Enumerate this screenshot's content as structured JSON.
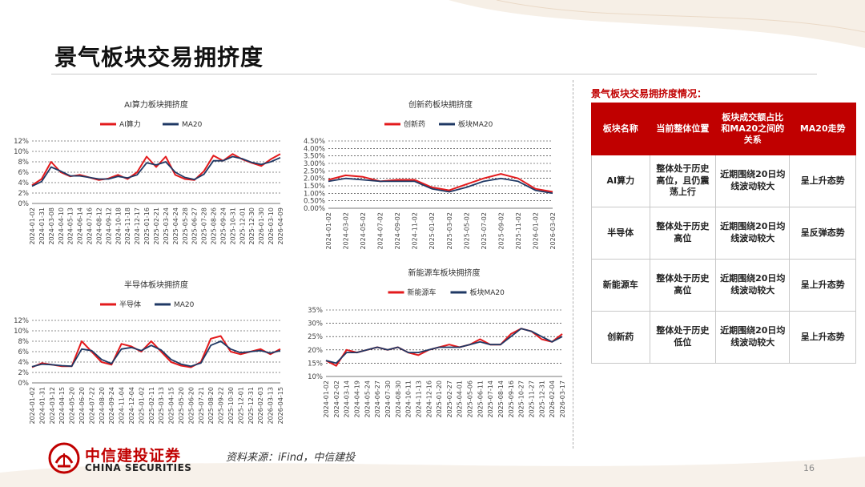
{
  "page": {
    "title": "景气板块交易拥挤度",
    "source": "资料来源：iFind，中信建投",
    "page_number": "16"
  },
  "logo": {
    "cn": "中信建投证券",
    "en": "CHINA SECURITIES"
  },
  "colors": {
    "accent": "#c00000",
    "series_main": "#e31a1c",
    "series_ma": "#1f3864"
  },
  "table": {
    "title": "景气板块交易拥挤度情况：",
    "headers": [
      "板块名称",
      "当前整体位置",
      "板块成交额占比和MA20之间的关系",
      "MA20走势"
    ],
    "rows": [
      [
        "AI算力",
        "整体处于历史高位，且仍震荡上行",
        "近期围绕20日均线波动较大",
        "呈上升态势"
      ],
      [
        "半导体",
        "整体处于历史高位",
        "近期围绕20日均线波动较大",
        "呈反弹态势"
      ],
      [
        "新能源车",
        "整体处于历史高位",
        "近期围绕20日均线波动较大",
        "呈上升态势"
      ],
      [
        "创新药",
        "整体处于历史低位",
        "近期围绕20日均线波动较大",
        "呈上升态势"
      ]
    ]
  },
  "chart_data": [
    {
      "type": "line",
      "title": "AI算力板块拥挤度",
      "legend": [
        "AI算力",
        "MA20"
      ],
      "ylim": [
        0,
        0.12
      ],
      "yticks": [
        "0%",
        "2%",
        "4%",
        "6%",
        "8%",
        "10%",
        "12%"
      ],
      "x": [
        "2024-01-02",
        "2024-01-31",
        "2024-03-08",
        "2024-04-10",
        "2024-05-13",
        "2024-06-14",
        "2024-07-16",
        "2024-08-12",
        "2024-09-12",
        "2024-10-18",
        "2024-11-18",
        "2024-12-17",
        "2025-01-16",
        "2025-02-21",
        "2025-03-24",
        "2025-04-24",
        "2025-05-28",
        "2025-06-27",
        "2025-07-28",
        "2025-08-26",
        "2025-09-24",
        "2025-10-31",
        "2025-12-01",
        "2025-12-30",
        "2026-01-30",
        "2026-03-10",
        "2026-04-09"
      ],
      "series": [
        {
          "name": "AI算力",
          "values": [
            0.035,
            0.047,
            0.08,
            0.06,
            0.052,
            0.055,
            0.05,
            0.045,
            0.048,
            0.055,
            0.047,
            0.06,
            0.09,
            0.07,
            0.09,
            0.055,
            0.047,
            0.045,
            0.062,
            0.092,
            0.082,
            0.095,
            0.085,
            0.078,
            0.072,
            0.085,
            0.095
          ]
        },
        {
          "name": "MA20",
          "values": [
            0.033,
            0.042,
            0.07,
            0.062,
            0.053,
            0.053,
            0.05,
            0.047,
            0.047,
            0.052,
            0.049,
            0.055,
            0.078,
            0.074,
            0.08,
            0.06,
            0.05,
            0.046,
            0.056,
            0.082,
            0.082,
            0.09,
            0.086,
            0.079,
            0.075,
            0.08,
            0.088
          ]
        }
      ]
    },
    {
      "type": "line",
      "title": "创新药板块拥挤度",
      "legend": [
        "创新药",
        "板块MA20"
      ],
      "ylim": [
        0,
        0.045
      ],
      "yticks": [
        "0.00%",
        "0.50%",
        "1.00%",
        "1.50%",
        "2.00%",
        "2.50%",
        "3.00%",
        "3.50%",
        "4.00%",
        "4.50%"
      ],
      "x": [
        "2024-01-02",
        "2024-03-02",
        "2024-05-02",
        "2024-07-02",
        "2024-09-02",
        "2024-11-02",
        "2025-01-02",
        "2025-03-02",
        "2025-05-02",
        "2025-07-02",
        "2025-09-02",
        "2025-11-02",
        "2026-01-02",
        "2026-03-02"
      ],
      "series": [
        {
          "name": "创新药",
          "values": [
            0.019,
            0.022,
            0.021,
            0.018,
            0.019,
            0.019,
            0.014,
            0.012,
            0.016,
            0.02,
            0.023,
            0.02,
            0.013,
            0.011
          ]
        },
        {
          "name": "板块MA20",
          "values": [
            0.018,
            0.02,
            0.019,
            0.018,
            0.018,
            0.018,
            0.013,
            0.011,
            0.014,
            0.018,
            0.02,
            0.018,
            0.012,
            0.01
          ]
        }
      ]
    },
    {
      "type": "line",
      "title": "半导体板块拥挤度",
      "legend": [
        "半导体",
        "MA20"
      ],
      "ylim": [
        0,
        0.12
      ],
      "yticks": [
        "0%",
        "2%",
        "4%",
        "6%",
        "8%",
        "10%",
        "12%"
      ],
      "x": [
        "2024-01-02",
        "2024-01-31",
        "2024-03-12",
        "2024-04-15",
        "2024-05-20",
        "2024-06-20",
        "2024-07-22",
        "2024-08-20",
        "2024-09-24",
        "2024-11-04",
        "2024-12-04",
        "2025-01-02",
        "2025-02-11",
        "2025-03-13",
        "2025-04-15",
        "2025-05-20",
        "2025-06-20",
        "2025-07-21",
        "2025-08-20",
        "2025-09-22",
        "2025-10-30",
        "2025-12-01",
        "2025-12-31",
        "2026-02-03",
        "2026-03-13",
        "2026-04-15"
      ],
      "series": [
        {
          "name": "半导体",
          "values": [
            0.03,
            0.038,
            0.035,
            0.032,
            0.032,
            0.08,
            0.06,
            0.04,
            0.035,
            0.075,
            0.07,
            0.06,
            0.08,
            0.06,
            0.04,
            0.033,
            0.03,
            0.04,
            0.085,
            0.09,
            0.06,
            0.055,
            0.06,
            0.065,
            0.055,
            0.065
          ]
        },
        {
          "name": "MA20",
          "values": [
            0.031,
            0.036,
            0.035,
            0.033,
            0.032,
            0.065,
            0.062,
            0.045,
            0.037,
            0.065,
            0.068,
            0.062,
            0.072,
            0.063,
            0.045,
            0.036,
            0.032,
            0.038,
            0.072,
            0.08,
            0.065,
            0.058,
            0.06,
            0.062,
            0.057,
            0.062
          ]
        }
      ]
    },
    {
      "type": "line",
      "title": "新能源车板块拥挤度",
      "legend": [
        "新能源车",
        "板块MA20"
      ],
      "ylim": [
        0.1,
        0.35
      ],
      "yticks": [
        "10%",
        "15%",
        "20%",
        "25%",
        "30%",
        "35%"
      ],
      "x": [
        "2024-01-02",
        "2024-02-02",
        "2024-03-14",
        "2024-04-19",
        "2024-05-24",
        "2024-06-27",
        "2024-07-30",
        "2024-08-30",
        "2024-10-11",
        "2024-11-13",
        "2024-12-16",
        "2025-01-20",
        "2025-02-27",
        "2025-04-01",
        "2025-05-06",
        "2025-06-11",
        "2025-07-14",
        "2025-08-14",
        "2025-09-16",
        "2025-10-27",
        "2025-11-27",
        "2025-12-31",
        "2026-02-04",
        "2026-03-17"
      ],
      "series": [
        {
          "name": "新能源车",
          "values": [
            0.16,
            0.14,
            0.2,
            0.19,
            0.2,
            0.21,
            0.2,
            0.21,
            0.19,
            0.18,
            0.2,
            0.21,
            0.22,
            0.21,
            0.22,
            0.24,
            0.22,
            0.22,
            0.26,
            0.28,
            0.27,
            0.24,
            0.23,
            0.26
          ]
        },
        {
          "name": "板块MA20",
          "values": [
            0.16,
            0.15,
            0.19,
            0.19,
            0.2,
            0.21,
            0.2,
            0.21,
            0.19,
            0.19,
            0.2,
            0.21,
            0.21,
            0.21,
            0.22,
            0.23,
            0.22,
            0.22,
            0.25,
            0.28,
            0.27,
            0.25,
            0.23,
            0.25
          ]
        }
      ]
    }
  ]
}
